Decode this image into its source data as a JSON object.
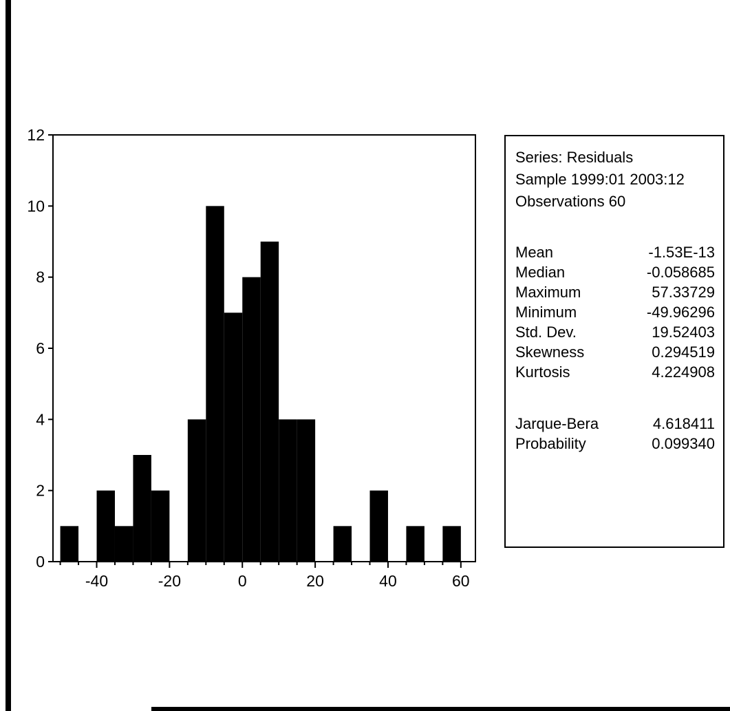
{
  "chart_data": {
    "type": "bar",
    "title": "",
    "xlabel": "",
    "ylabel": "",
    "bin_width": 5,
    "bins": [
      {
        "x0": -50,
        "x1": -45,
        "count": 1
      },
      {
        "x0": -45,
        "x1": -40,
        "count": 0
      },
      {
        "x0": -40,
        "x1": -35,
        "count": 2
      },
      {
        "x0": -35,
        "x1": -30,
        "count": 1
      },
      {
        "x0": -30,
        "x1": -25,
        "count": 3
      },
      {
        "x0": -25,
        "x1": -20,
        "count": 2
      },
      {
        "x0": -20,
        "x1": -15,
        "count": 0
      },
      {
        "x0": -15,
        "x1": -10,
        "count": 4
      },
      {
        "x0": -10,
        "x1": -5,
        "count": 10
      },
      {
        "x0": -5,
        "x1": 0,
        "count": 7
      },
      {
        "x0": 0,
        "x1": 5,
        "count": 8
      },
      {
        "x0": 5,
        "x1": 10,
        "count": 9
      },
      {
        "x0": 10,
        "x1": 15,
        "count": 4
      },
      {
        "x0": 15,
        "x1": 20,
        "count": 4
      },
      {
        "x0": 20,
        "x1": 25,
        "count": 0
      },
      {
        "x0": 25,
        "x1": 30,
        "count": 1
      },
      {
        "x0": 30,
        "x1": 35,
        "count": 0
      },
      {
        "x0": 35,
        "x1": 40,
        "count": 2
      },
      {
        "x0": 40,
        "x1": 45,
        "count": 0
      },
      {
        "x0": 45,
        "x1": 50,
        "count": 1
      },
      {
        "x0": 50,
        "x1": 55,
        "count": 0
      },
      {
        "x0": 55,
        "x1": 60,
        "count": 1
      }
    ],
    "xlim": [
      -52,
      64
    ],
    "ylim": [
      0,
      12
    ],
    "x_ticks": [
      -40,
      -20,
      0,
      20,
      40,
      60
    ],
    "x_tick_labels": [
      "-40",
      "-20",
      "0",
      "20",
      "40",
      "60"
    ],
    "y_ticks": [
      0,
      2,
      4,
      6,
      8,
      10,
      12
    ],
    "y_tick_labels": [
      "0",
      "2",
      "4",
      "6",
      "8",
      "10",
      "12"
    ],
    "bar_color": "#000000",
    "grid": false,
    "legend": "none"
  },
  "stats": {
    "series": "Series: Residuals",
    "sample": "Sample 1999:01 2003:12",
    "observations": "Observations 60",
    "rows": [
      {
        "label": "Mean",
        "value": "-1.53E-13"
      },
      {
        "label": "Median",
        "value": "-0.058685"
      },
      {
        "label": "Maximum",
        "value": "57.33729"
      },
      {
        "label": "Minimum",
        "value": "-49.96296"
      },
      {
        "label": "Std. Dev.",
        "value": "19.52403"
      },
      {
        "label": "Skewness",
        "value": "0.294519"
      },
      {
        "label": "Kurtosis",
        "value": "4.224908"
      }
    ],
    "jb_rows": [
      {
        "label": "Jarque-Bera",
        "value": "4.618411"
      },
      {
        "label": "Probability",
        "value": "0.099340"
      }
    ]
  }
}
